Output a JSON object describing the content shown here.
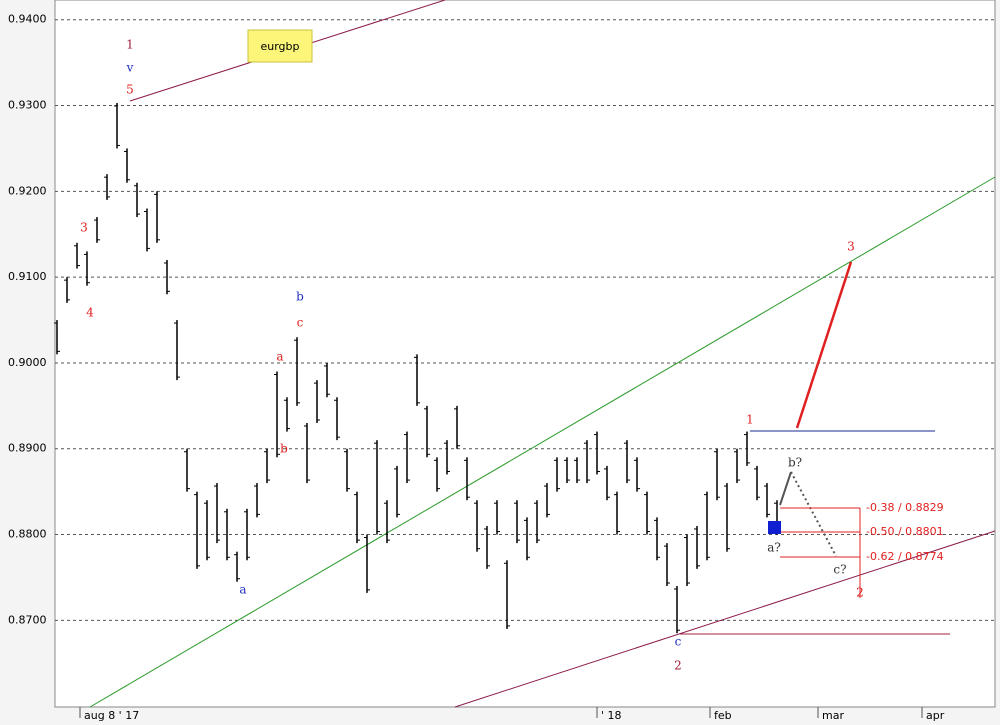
{
  "chart_data": {
    "type": "hilo",
    "title": "eurgbp",
    "ylim": [
      0.8599,
      0.9423
    ],
    "yticks": [
      {
        "value": 0.87,
        "label": "0.8700"
      },
      {
        "value": 0.88,
        "label": "0.8800"
      },
      {
        "value": 0.89,
        "label": "0.8900"
      },
      {
        "value": 0.9,
        "label": "0.9000"
      },
      {
        "value": 0.91,
        "label": "0.9100"
      },
      {
        "value": 0.92,
        "label": "0.9200"
      },
      {
        "value": 0.93,
        "label": "0.9300"
      },
      {
        "value": 0.94,
        "label": "0.9400"
      }
    ],
    "xlim": [
      -0.2,
      93.8
    ],
    "xticks": [
      {
        "value": 2.3,
        "label": "aug 8 ' 17"
      },
      {
        "value": 54,
        "label": "' 18"
      },
      {
        "value": 65.3,
        "label": "feb"
      },
      {
        "value": 76.1,
        "label": "mar"
      },
      {
        "value": 86.5,
        "label": "apr"
      }
    ],
    "grid": true,
    "color": "#000000",
    "high": [
      0.905,
      0.91,
      0.914,
      0.913,
      0.917,
      0.922,
      0.9303,
      0.925,
      0.921,
      0.918,
      0.92,
      0.912,
      0.905,
      0.89,
      0.885,
      0.884,
      0.886,
      0.883,
      0.878,
      0.883,
      0.886,
      0.89,
      0.899,
      0.896,
      0.903,
      0.893,
      0.898,
      0.9,
      0.896,
      0.89,
      0.885,
      0.88,
      0.891,
      0.884,
      0.888,
      0.892,
      0.901,
      0.895,
      0.889,
      0.891,
      0.895,
      0.889,
      0.884,
      0.881,
      0.884,
      0.877,
      0.884,
      0.882,
      0.884,
      0.886,
      0.889,
      0.889,
      0.889,
      0.891,
      0.892,
      0.888,
      0.885,
      0.891,
      0.889,
      0.885,
      0.882,
      0.879,
      0.874,
      0.88,
      0.881,
      0.885,
      0.89,
      0.886,
      0.89,
      0.892,
      0.888,
      0.886,
      0.884
    ],
    "low": [
      0.901,
      0.907,
      0.911,
      0.909,
      0.914,
      0.919,
      0.925,
      0.921,
      0.917,
      0.913,
      0.914,
      0.908,
      0.898,
      0.885,
      0.876,
      0.877,
      0.879,
      0.877,
      0.8745,
      0.877,
      0.882,
      0.886,
      0.889,
      0.892,
      0.895,
      0.886,
      0.893,
      0.896,
      0.891,
      0.885,
      0.879,
      0.8732,
      0.88,
      0.879,
      0.882,
      0.886,
      0.895,
      0.889,
      0.885,
      0.887,
      0.89,
      0.884,
      0.878,
      0.876,
      0.88,
      0.869,
      0.879,
      0.877,
      0.879,
      0.882,
      0.885,
      0.886,
      0.886,
      0.886,
      0.887,
      0.884,
      0.88,
      0.886,
      0.885,
      0.88,
      0.877,
      0.874,
      0.8685,
      0.874,
      0.876,
      0.877,
      0.884,
      0.878,
      0.886,
      0.888,
      0.884,
      0.882,
      0.88
    ],
    "annotations": [
      {
        "text": "1",
        "color": "#a0203a"
      },
      {
        "text": "v",
        "color": "#2030c0"
      },
      {
        "text": "5",
        "color": "#e02020"
      },
      {
        "text": "3",
        "color": "#e02020"
      },
      {
        "text": "4",
        "color": "#e02020"
      },
      {
        "text": "b",
        "color": "#2030c0"
      },
      {
        "text": "c",
        "color": "#e02020"
      },
      {
        "text": "a",
        "color": "#e02020"
      },
      {
        "text": "b",
        "color": "#e02020"
      },
      {
        "text": "a",
        "color": "#2030c0"
      },
      {
        "text": "c",
        "color": "#2030c0"
      },
      {
        "text": "2",
        "color": "#a0203a"
      },
      {
        "text": "1",
        "color": "#e02020"
      },
      {
        "text": "3",
        "color": "#e02020"
      },
      {
        "text": "2",
        "color": "#e02020"
      },
      {
        "text": "b?",
        "color": "#333333"
      },
      {
        "text": "a?",
        "color": "#333333"
      },
      {
        "text": "c?",
        "color": "#333333"
      },
      {
        "text": "-0.38 / 0.8829",
        "color": "#e02020"
      },
      {
        "text": "-0.50 / 0.8801",
        "color": "#e02020"
      },
      {
        "text": "-0.62 / 0.8774",
        "color": "#e02020"
      }
    ]
  }
}
